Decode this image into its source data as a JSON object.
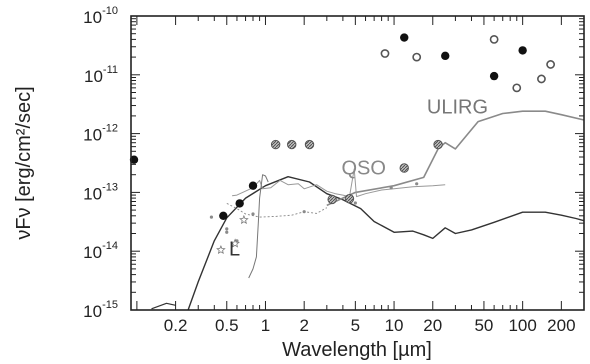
{
  "chart_data": {
    "type": "scatter",
    "title": "",
    "xlabel": "Wavelength [µm]",
    "ylabel": "νFν [erg/cm²/sec]",
    "xscale": "log",
    "yscale": "log",
    "xlim": [
      0.09,
      300
    ],
    "ylim": [
      1e-15,
      1e-10
    ],
    "grid": false,
    "x_ticks": [
      {
        "value": 0.2,
        "label": "0.2"
      },
      {
        "value": 0.5,
        "label": "0.5"
      },
      {
        "value": 1,
        "label": "1"
      },
      {
        "value": 2,
        "label": "2"
      },
      {
        "value": 5,
        "label": "5"
      },
      {
        "value": 10,
        "label": "10"
      },
      {
        "value": 20,
        "label": "20"
      },
      {
        "value": 50,
        "label": "50"
      },
      {
        "value": 100,
        "label": "100"
      },
      {
        "value": 200,
        "label": "200"
      }
    ],
    "y_ticks": [
      {
        "value": 1e-15,
        "base": "10",
        "exp": "-15"
      },
      {
        "value": 1e-14,
        "base": "10",
        "exp": "-14"
      },
      {
        "value": 1e-13,
        "base": "10",
        "exp": "-13"
      },
      {
        "value": 1e-12,
        "base": "10",
        "exp": "-12"
      },
      {
        "value": 1e-11,
        "base": "10",
        "exp": "-11"
      },
      {
        "value": 1e-10,
        "base": "10",
        "exp": "-10"
      }
    ],
    "annotations": [
      {
        "text": "ULIRG",
        "x": 18,
        "y": 2.2e-12,
        "color": "#777777"
      },
      {
        "text": "QSO",
        "x": 3.9,
        "y": 2e-13,
        "color": "#888888"
      },
      {
        "text": "L",
        "x": 0.52,
        "y": 8.5e-15,
        "color": "#333333"
      }
    ],
    "curves": [
      {
        "style": "dark",
        "points": [
          [
            0.25,
            1e-15
          ],
          [
            0.3,
            3e-15
          ],
          [
            0.4,
            1.5e-14
          ],
          [
            0.5,
            3.7e-14
          ],
          [
            0.7,
            8e-14
          ],
          [
            1.0,
            1.3e-13
          ],
          [
            1.5,
            1.85e-13
          ],
          [
            2.2,
            1.5e-13
          ],
          [
            3.0,
            9.5e-14
          ],
          [
            4.0,
            7.5e-14
          ],
          [
            5.5,
            5.3e-14
          ],
          [
            7.0,
            3.2e-14
          ],
          [
            10,
            2.1e-14
          ],
          [
            14,
            2.2e-14
          ],
          [
            17,
            1.9e-14
          ],
          [
            20,
            1.65e-14
          ],
          [
            25,
            2.5e-14
          ],
          [
            30,
            2e-14
          ],
          [
            40,
            2.3e-14
          ],
          [
            60,
            3.1e-14
          ],
          [
            100,
            4.6e-14
          ],
          [
            150,
            4.6e-14
          ],
          [
            200,
            4.1e-14
          ],
          [
            260,
            3.6e-14
          ],
          [
            300,
            3.3e-14
          ]
        ]
      },
      {
        "style": "dark-low",
        "points": [
          [
            0.13,
            1.05e-15
          ],
          [
            0.17,
            1.3e-15
          ],
          [
            0.2,
            1.2e-15
          ]
        ]
      },
      {
        "style": "gray",
        "points": [
          [
            3.0,
            6e-14
          ],
          [
            5.0,
            1e-13
          ],
          [
            10,
            1.3e-13
          ],
          [
            17,
            1.8e-13
          ],
          [
            22,
            5.5e-13
          ],
          [
            25,
            7e-13
          ],
          [
            30,
            5.5e-13
          ],
          [
            45,
            1.6e-12
          ],
          [
            70,
            2.2e-12
          ],
          [
            100,
            2.4e-12
          ],
          [
            150,
            2.4e-12
          ],
          [
            200,
            2.1e-12
          ],
          [
            300,
            1.7e-12
          ]
        ]
      },
      {
        "style": "qso",
        "points": [
          [
            0.55,
            8.8e-14
          ],
          [
            0.6,
            9e-14
          ],
          [
            0.8,
            1.2e-13
          ],
          [
            0.9,
            1.6e-13
          ],
          [
            0.95,
            1.15e-13
          ],
          [
            1.1,
            1.2e-13
          ],
          [
            1.3,
            1.6e-13
          ],
          [
            1.5,
            1.35e-13
          ],
          [
            1.8,
            1.4e-13
          ],
          [
            2.0,
            1.15e-13
          ],
          [
            2.5,
            1.35e-13
          ],
          [
            3.0,
            1.05e-13
          ],
          [
            3.5,
            9.5e-14
          ],
          [
            4.0,
            9e-14
          ],
          [
            4.5,
            8.5e-14
          ],
          [
            4.9,
            2.5e-13
          ],
          [
            5.1,
            8.5e-14
          ],
          [
            6.0,
            9.5e-14
          ],
          [
            8.0,
            1.1e-13
          ],
          [
            10,
            1.15e-13
          ],
          [
            14,
            1.25e-13
          ],
          [
            20,
            1.3e-13
          ],
          [
            25,
            1.35e-13
          ]
        ]
      },
      {
        "style": "qso-early",
        "points": [
          [
            0.5,
            6.5e-14
          ],
          [
            0.6,
            5.3e-14
          ],
          [
            0.7,
            4.3e-14
          ],
          [
            0.9,
            3.8e-14
          ],
          [
            1.2,
            3.9e-14
          ],
          [
            1.6,
            4.1e-14
          ],
          [
            2.0,
            4.7e-14
          ],
          [
            2.5,
            4.4e-14
          ],
          [
            3.0,
            5.5e-14
          ]
        ]
      },
      {
        "style": "ldwarf",
        "points": [
          [
            0.74,
            3.5e-15
          ],
          [
            0.8,
            5e-15
          ],
          [
            0.85,
            8e-15
          ],
          [
            0.88,
            3e-14
          ],
          [
            0.9,
            8e-14
          ],
          [
            0.95,
            2e-13
          ],
          [
            1.0,
            1.9e-13
          ],
          [
            1.05,
            1.5e-13
          ]
        ]
      }
    ],
    "series": [
      {
        "marker": "filled-circle",
        "points": [
          [
            0.095,
            3.6e-13
          ],
          [
            0.47,
            4e-14
          ],
          [
            0.63,
            6.5e-14
          ],
          [
            0.8,
            1.3e-13
          ],
          [
            12,
            4.3e-11
          ],
          [
            25,
            2.1e-11
          ],
          [
            60,
            9.5e-12
          ],
          [
            100,
            2.6e-11
          ]
        ]
      },
      {
        "marker": "open-circle",
        "points": [
          [
            8.5,
            2.3e-11
          ],
          [
            15,
            2e-11
          ],
          [
            60,
            4e-11
          ],
          [
            90,
            6e-12
          ],
          [
            140,
            8.5e-12
          ],
          [
            165,
            1.5e-11
          ]
        ]
      },
      {
        "marker": "hatched-circle",
        "points": [
          [
            1.2,
            6.5e-13
          ],
          [
            1.6,
            6.5e-13
          ],
          [
            2.2,
            6.5e-13
          ],
          [
            12,
            2.6e-13
          ],
          [
            22,
            6.5e-13
          ],
          [
            4.5,
            7.8e-14
          ],
          [
            3.3,
            7.6e-14
          ]
        ]
      },
      {
        "marker": "small-dot",
        "points": [
          [
            0.38,
            3.8e-14
          ],
          [
            0.5,
            2.1e-14
          ],
          [
            0.6,
            1.5e-14
          ],
          [
            0.8,
            4.3e-14
          ],
          [
            0.5,
            2.4e-14
          ],
          [
            2.0,
            4.7e-14
          ],
          [
            5.0,
            6.6e-14
          ],
          [
            9.5,
            1.2e-13
          ],
          [
            15,
            1.4e-13
          ]
        ]
      },
      {
        "marker": "star",
        "points": [
          [
            0.45,
            1.05e-14
          ],
          [
            0.58,
            1.35e-14
          ],
          [
            0.68,
            3.4e-14
          ]
        ]
      }
    ]
  }
}
